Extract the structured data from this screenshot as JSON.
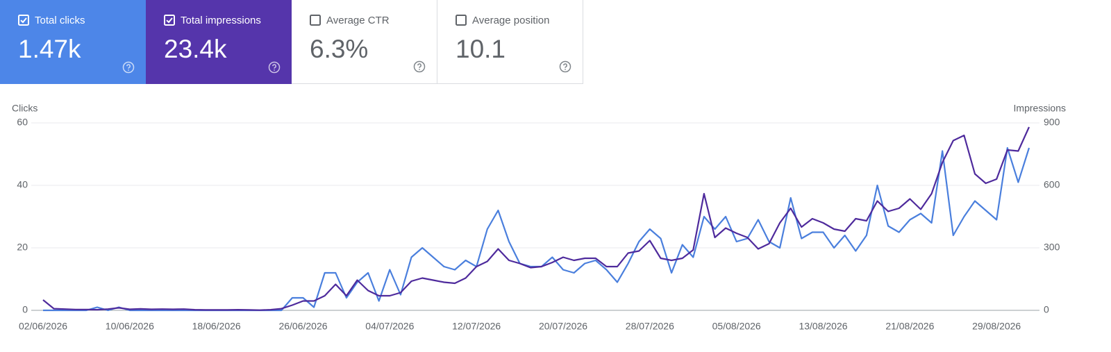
{
  "cards": [
    {
      "label": "Total clicks",
      "value": "1.47k",
      "selected": true,
      "color": "#4d86e8"
    },
    {
      "label": "Total impressions",
      "value": "23.4k",
      "selected": true,
      "color": "#5535ab"
    },
    {
      "label": "Average CTR",
      "value": "6.3%",
      "selected": false,
      "color": "#ffffff"
    },
    {
      "label": "Average position",
      "value": "10.1",
      "selected": false,
      "color": "#ffffff"
    }
  ],
  "chart_data": {
    "type": "line",
    "y_label": "Clicks",
    "y2_label": "Impressions",
    "x": [
      "02/06/2026",
      "03/06/2026",
      "04/06/2026",
      "05/06/2026",
      "06/06/2026",
      "07/06/2026",
      "08/06/2026",
      "09/06/2026",
      "10/06/2026",
      "11/06/2026",
      "12/06/2026",
      "13/06/2026",
      "14/06/2026",
      "15/06/2026",
      "16/06/2026",
      "17/06/2026",
      "18/06/2026",
      "19/06/2026",
      "20/06/2026",
      "21/06/2026",
      "22/06/2026",
      "23/06/2026",
      "24/06/2026",
      "25/06/2026",
      "26/06/2026",
      "27/06/2026",
      "28/06/2026",
      "29/06/2026",
      "30/06/2026",
      "01/07/2026",
      "02/07/2026",
      "03/07/2026",
      "04/07/2026",
      "05/07/2026",
      "06/07/2026",
      "07/07/2026",
      "08/07/2026",
      "09/07/2026",
      "10/07/2026",
      "11/07/2026",
      "12/07/2026",
      "13/07/2026",
      "14/07/2026",
      "15/07/2026",
      "16/07/2026",
      "17/07/2026",
      "18/07/2026",
      "19/07/2026",
      "20/07/2026",
      "21/07/2026",
      "22/07/2026",
      "23/07/2026",
      "24/07/2026",
      "25/07/2026",
      "26/07/2026",
      "27/07/2026",
      "28/07/2026",
      "29/07/2026",
      "30/07/2026",
      "31/07/2026",
      "01/08/2026",
      "02/08/2026",
      "03/08/2026",
      "04/08/2026",
      "05/08/2026",
      "06/08/2026",
      "07/08/2026",
      "08/08/2026",
      "09/08/2026",
      "10/08/2026",
      "11/08/2026",
      "12/08/2026",
      "13/08/2026",
      "14/08/2026",
      "15/08/2026",
      "16/08/2026",
      "17/08/2026",
      "18/08/2026",
      "19/08/2026",
      "20/08/2026",
      "21/08/2026",
      "22/08/2026",
      "23/08/2026",
      "24/08/2026",
      "25/08/2026",
      "26/08/2026",
      "27/08/2026",
      "28/08/2026",
      "29/08/2026",
      "30/08/2026",
      "31/08/2026",
      "01/09/2026"
    ],
    "xticks": [
      "02/06/2026",
      "10/06/2026",
      "18/06/2026",
      "26/06/2026",
      "04/07/2026",
      "12/07/2026",
      "20/07/2026",
      "28/07/2026",
      "05/08/2026",
      "13/08/2026",
      "21/08/2026",
      "29/08/2026"
    ],
    "ylim": [
      0,
      60
    ],
    "yticks": [
      0,
      20,
      40,
      60
    ],
    "y2lim": [
      0,
      900
    ],
    "y2ticks": [
      0,
      300,
      600,
      900
    ],
    "grid": true,
    "series": [
      {
        "name": "Clicks",
        "color": "#4a7fdd",
        "values": [
          0,
          0,
          0,
          0,
          0,
          1,
          0,
          1,
          0,
          0,
          0,
          0,
          0,
          0,
          0,
          0,
          0,
          0,
          0,
          0,
          0,
          0,
          0,
          4,
          4,
          1,
          12,
          12,
          4,
          9,
          12,
          3,
          13,
          5,
          17,
          20,
          17,
          14,
          13,
          16,
          14,
          26,
          32,
          22,
          15,
          14,
          14,
          17,
          13,
          12,
          15,
          16,
          13,
          9,
          15,
          22,
          26,
          23,
          12,
          21,
          17,
          30,
          26,
          30,
          22,
          23,
          29,
          22,
          20,
          36,
          23,
          25,
          25,
          20,
          24,
          19,
          24,
          40,
          27,
          25,
          29,
          31,
          28,
          51,
          24,
          30,
          35,
          32,
          29,
          52,
          41,
          52
        ]
      },
      {
        "name": "Impressions",
        "color": "#4e2a9c",
        "axis": "y2",
        "values": [
          50,
          8,
          6,
          4,
          4,
          3,
          6,
          12,
          5,
          7,
          5,
          6,
          5,
          6,
          3,
          2,
          2,
          2,
          3,
          2,
          1,
          3,
          8,
          25,
          45,
          45,
          70,
          125,
          70,
          145,
          95,
          70,
          70,
          85,
          140,
          155,
          145,
          135,
          130,
          155,
          210,
          235,
          295,
          240,
          225,
          205,
          210,
          230,
          255,
          240,
          250,
          250,
          210,
          210,
          275,
          285,
          335,
          250,
          240,
          250,
          290,
          560,
          350,
          395,
          370,
          350,
          295,
          320,
          420,
          490,
          400,
          440,
          420,
          390,
          380,
          440,
          430,
          525,
          475,
          490,
          535,
          485,
          560,
          710,
          815,
          840,
          655,
          610,
          630,
          770,
          765,
          880
        ]
      }
    ]
  }
}
